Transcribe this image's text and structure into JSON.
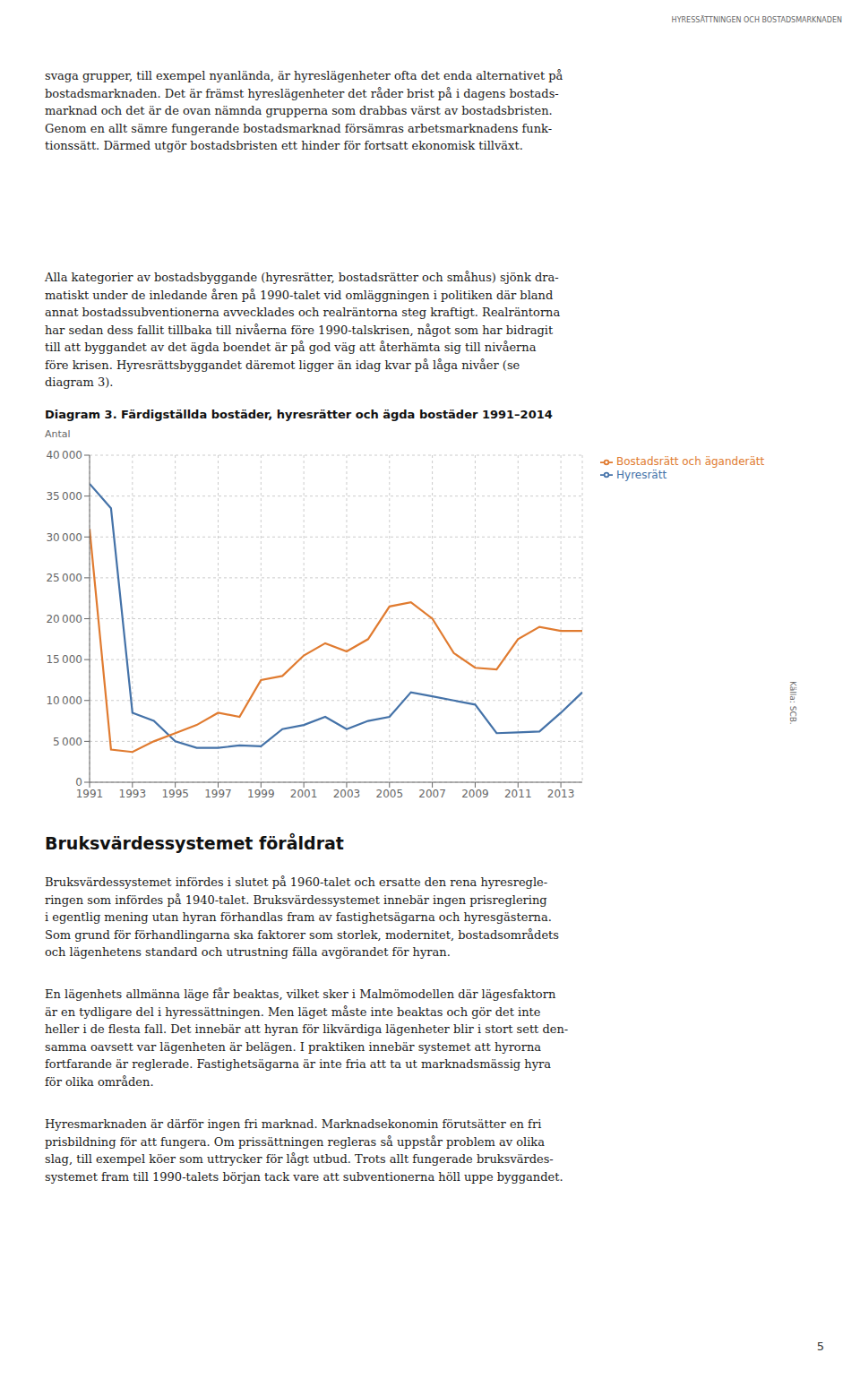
{
  "chart_data": {
    "type": "line",
    "title": "Diagram 3. Färdigställda bostäder, hyresrätter och ägda bostäder 1991–2014",
    "y_label": "Antal",
    "x": [
      1991,
      1992,
      1993,
      1994,
      1995,
      1996,
      1997,
      1998,
      1999,
      2000,
      2001,
      2002,
      2003,
      2004,
      2005,
      2006,
      2007,
      2008,
      2009,
      2010,
      2011,
      2012,
      2013,
      2014
    ],
    "series": [
      {
        "name": "Hyresrätt",
        "color": "#4472a8",
        "values": [
          36500,
          33500,
          8500,
          7500,
          5000,
          4200,
          4200,
          4500,
          4400,
          6500,
          7000,
          8000,
          6500,
          7500,
          8000,
          11000,
          10500,
          10000,
          9500,
          6000,
          6100,
          6200,
          8500,
          11000
        ]
      },
      {
        "name": "Bostadsrätt och äganderätt",
        "color": "#e07b30",
        "values": [
          31000,
          4000,
          3700,
          5000,
          6000,
          7000,
          8500,
          8000,
          12500,
          13000,
          15500,
          17000,
          16000,
          17500,
          21500,
          22000,
          20000,
          15800,
          14000,
          13800,
          17500,
          19000,
          18500,
          18500
        ]
      }
    ],
    "xlim": [
      1991,
      2014
    ],
    "xticks": [
      1991,
      1993,
      1995,
      1997,
      1999,
      2001,
      2003,
      2005,
      2007,
      2009,
      2011,
      2013
    ],
    "ylim": [
      0,
      40000
    ],
    "yticks": [
      0,
      {
        "value": 5000,
        "label": "5 000"
      },
      {
        "value": 10000,
        "label": "10 000"
      },
      {
        "value": 15000,
        "label": "15 000"
      },
      {
        "value": 20000,
        "label": "20 000"
      },
      {
        "value": 25000,
        "label": "25 000"
      },
      {
        "value": 30000,
        "label": "30 000"
      },
      {
        "value": 35000,
        "label": "35 000"
      },
      {
        "value": 40000,
        "label": "40 000"
      }
    ],
    "grid": true,
    "legend": "right",
    "annotations": [
      [
        "HYRESSÄTTNINGEN OCH BOSTADSMARKNADEN"
      ],
      [
        "svaga grupper, till exempel nyanlända, är hyreslägenheter ofta det enda alternativet på",
        "bostadsmarknaden. Det är främst hyreslägenheter det råder brist på i dagens bostads-",
        "marknad och det är de ovan nämnda grupperna som drabbas värst av bostadsbristen.",
        "Genom en allt sämre fungerande bostadsmarknad försämras arbetsmarknadens funk-",
        "tionssätt. Därmed utgör bostadsbristen ett hinder för fortsatt ekonomisk tillväxt."
      ],
      [
        "Alla kategorier av bostadsbyggande (hyresrätter, bostadsrätter och småhus) sjönk dra-",
        "matiskt under de inledande åren på 1990-talet vid omläggningen i politiken där bland",
        "annat bostadssubventionerna avvecklades och realräntorna steg kraftigt. Realräntorna",
        "har sedan dess fallit tillbaka till nivåerna före 1990-talskrisen, något som har bidragit",
        "till att byggandet av det ägda boendet är på god väg att återhämta sig till nivåerna",
        "före krisen. Hyresrättsbyggandet däremot ligger än idag kvar på låga nivåer (se",
        "diagram 3)."
      ],
      [
        "Källa: SCB."
      ],
      [
        "Bruksvärdessystemet föråldrat"
      ],
      [
        "Bruksvärdessystemet infördes i slutet på 1960-talet och ersatte den rena hyresregle-",
        "ringen som infördes på 1940-talet. Bruksvärdessystemet innebär ingen prisreglering",
        "i egentlig mening utan hyran förhandlas fram av fastighetsägarna och hyresgästerna.",
        "Som grund för förhandlingarna ska faktorer som storlek, modernitet, bostadsområdets",
        "och lägenhetens standard och utrustning fälla avgörandet för hyran."
      ],
      [
        "En lägenhets allmänna läge får beaktas, vilket sker i Malmömodellen där lägesfaktorn",
        "är en tydligare del i hyressättningen. Men läget måste inte beaktas och gör det inte",
        "heller i de flesta fall. Det innebär att hyran för likvärdiga lägenheter blir i stort sett den-",
        "samma oavsett var lägenheten är belägen. I praktiken innebär systemet att hyrorna",
        "fortfarande är reglerade. Fastighetsägarna är inte fria att ta ut marknadsmässig hyra",
        "för olika områden."
      ],
      [
        "Hyresmarknaden är därför ingen fri marknad. Marknadsekonomin förutsätter en fri",
        "prisbildning för att fungera. Om prissättningen regleras så uppstår problem av olika",
        "slag, till exempel köer som uttrycker för lågt utbud. Trots allt fungerade bruksvärdes-",
        "systemet fram till 1990-talets början tack vare att subventionerna höll uppe byggandet."
      ],
      [
        "5"
      ]
    ]
  }
}
